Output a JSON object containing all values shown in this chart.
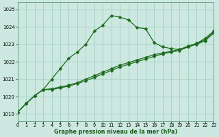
{
  "bg_color": "#cce8e0",
  "grid_color": "#99ccbb",
  "line_color": "#1a6b1a",
  "title": "Graphe pression niveau de la mer (hPa)",
  "xlim": [
    0,
    23
  ],
  "ylim": [
    1018.6,
    1025.4
  ],
  "yticks": [
    1019,
    1020,
    1021,
    1022,
    1023,
    1024,
    1025
  ],
  "xticks": [
    0,
    1,
    2,
    3,
    4,
    5,
    6,
    7,
    8,
    9,
    10,
    11,
    12,
    13,
    14,
    15,
    16,
    17,
    18,
    19,
    20,
    21,
    22,
    23
  ],
  "series1_x": [
    0,
    1,
    2,
    3,
    4,
    5,
    6,
    7,
    8,
    9,
    10,
    11,
    12,
    13,
    14,
    15,
    16,
    17,
    18,
    19,
    20,
    21,
    22,
    23
  ],
  "series1_y": [
    1019.1,
    1019.6,
    1020.05,
    1020.4,
    1021.0,
    1021.6,
    1022.2,
    1022.55,
    1023.0,
    1023.75,
    1024.1,
    1024.65,
    1024.55,
    1024.4,
    1023.95,
    1023.9,
    1023.1,
    1022.85,
    1022.75,
    1022.7,
    1022.85,
    1023.05,
    1023.35,
    1023.75
  ],
  "series2_x": [
    0,
    1,
    2,
    3,
    4,
    5,
    6,
    7,
    8,
    9,
    10,
    11,
    12,
    13,
    14,
    15,
    16,
    17,
    18,
    19,
    20,
    21,
    22,
    23
  ],
  "series2_y": [
    1019.1,
    1019.6,
    1020.05,
    1020.4,
    1020.4,
    1020.5,
    1020.6,
    1020.75,
    1020.9,
    1021.1,
    1021.3,
    1021.5,
    1021.7,
    1021.85,
    1022.0,
    1022.15,
    1022.3,
    1022.45,
    1022.55,
    1022.65,
    1022.85,
    1023.0,
    1023.2,
    1023.65
  ],
  "series3_x": [
    0,
    1,
    2,
    3,
    4,
    5,
    6,
    7,
    8,
    9,
    10,
    11,
    12,
    13,
    14,
    15,
    16,
    17,
    18,
    19,
    20,
    21,
    22,
    23
  ],
  "series3_y": [
    1019.1,
    1019.6,
    1020.05,
    1020.4,
    1020.45,
    1020.55,
    1020.65,
    1020.8,
    1021.0,
    1021.2,
    1021.4,
    1021.6,
    1021.8,
    1021.95,
    1022.1,
    1022.25,
    1022.4,
    1022.5,
    1022.6,
    1022.7,
    1022.9,
    1023.05,
    1023.25,
    1023.7
  ]
}
